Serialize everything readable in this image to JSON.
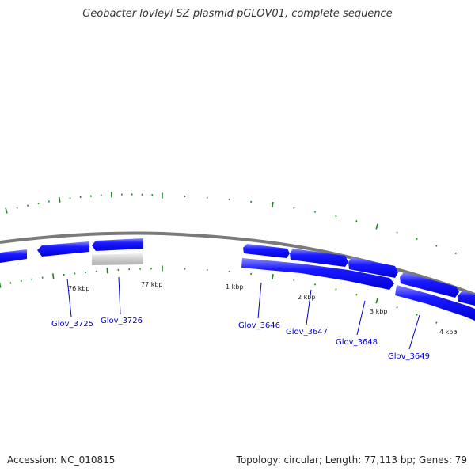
{
  "title": "Geobacter lovleyi SZ plasmid pGLOV01, complete sequence",
  "accession_text": "Accession: NC_010815",
  "topology_text": "Topology: circular; Length: 77,113 bp; Genes: 79",
  "colors": {
    "gene": "#0a0aee",
    "gene_highlight": "#8888ff",
    "pseudo_gene": "#c8c8c8",
    "backbone": "#888888",
    "tick": "#1a8a1a",
    "label": "#0000cc"
  },
  "kbp_ticks": [
    "76 kbp",
    "77 kbp",
    "1 kbp",
    "2 kbp",
    "3 kbp",
    "4 kbp"
  ],
  "genes": [
    {
      "name": "Glov_3725"
    },
    {
      "name": "Glov_3726"
    },
    {
      "name": "Glov_3646"
    },
    {
      "name": "Glov_3647"
    },
    {
      "name": "Glov_3648"
    },
    {
      "name": "Glov_3649"
    }
  ]
}
